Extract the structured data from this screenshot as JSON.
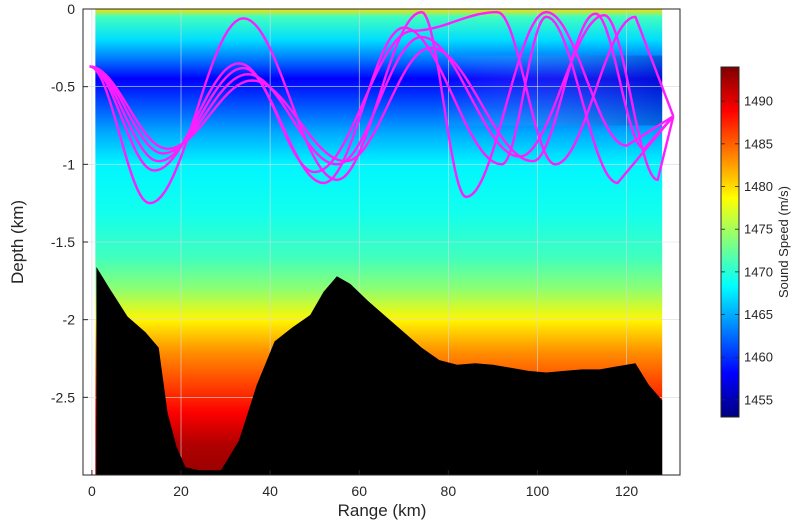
{
  "chart_data": {
    "type": "heatmap",
    "xlabel": "Range (km)",
    "ylabel": "Depth (km)",
    "xlim": [
      -2,
      132
    ],
    "ylim": [
      -3.0,
      0
    ],
    "xticks": [
      0,
      20,
      40,
      60,
      80,
      100,
      120
    ],
    "yticks": [
      0,
      -0.5,
      -1,
      -1.5,
      -2,
      -2.5
    ],
    "ytick_labels": [
      "0",
      "-0.5",
      "-1",
      "-1.5",
      "-2",
      "-2.5"
    ],
    "grid": true,
    "colorbar": {
      "title": "Sound Speed (m/s)",
      "colormap": "jet",
      "range": [
        1453,
        1494
      ],
      "ticks": [
        1455,
        1460,
        1465,
        1470,
        1475,
        1480,
        1485,
        1490
      ]
    },
    "sound_speed_profile": {
      "depth_km": [
        0,
        -0.05,
        -0.2,
        -0.35,
        -0.45,
        -0.6,
        -0.8,
        -1.0,
        -1.3,
        -1.6,
        -1.8,
        -2.0,
        -2.2,
        -2.4,
        -2.6,
        -2.8,
        -3.0
      ],
      "speed_ms": [
        1480,
        1471,
        1467,
        1462,
        1458,
        1461,
        1465,
        1468,
        1469,
        1471,
        1474,
        1479,
        1483,
        1486,
        1489,
        1492,
        1493
      ]
    },
    "bathymetry": {
      "range_km": [
        1,
        4,
        8,
        12,
        15,
        17,
        19,
        21,
        24,
        29,
        33,
        37,
        41,
        45,
        49,
        52,
        55,
        58,
        62,
        66,
        70,
        74,
        78,
        82,
        86,
        90,
        94,
        98,
        102,
        106,
        110,
        114,
        118,
        122,
        125,
        128
      ],
      "depth_km": [
        -1.66,
        -1.8,
        -1.98,
        -2.08,
        -2.18,
        -2.6,
        -2.82,
        -2.95,
        -2.97,
        -2.97,
        -2.78,
        -2.42,
        -2.14,
        -2.05,
        -1.97,
        -1.82,
        -1.72,
        -1.77,
        -1.88,
        -1.98,
        -2.08,
        -2.18,
        -2.26,
        -2.29,
        -2.28,
        -2.29,
        -2.31,
        -2.33,
        -2.34,
        -2.33,
        -2.32,
        -2.32,
        -2.3,
        -2.28,
        -2.42,
        -2.52
      ]
    },
    "ray_color": "#ff1dff",
    "ray_source": {
      "range_km": -0.5,
      "depth_km": -0.37
    },
    "ray_receiver": {
      "range_km": 130.5,
      "depth_km": -0.69
    },
    "rays": [
      {
        "vertices": [
          [
            -0.5,
            -0.37
          ],
          [
            13,
            -1.25
          ],
          [
            34,
            -0.06
          ],
          [
            55,
            -1.1
          ],
          [
            74,
            -0.02
          ],
          [
            84,
            -1.21
          ],
          [
            102,
            -0.02
          ],
          [
            120,
            -0.88
          ],
          [
            130.5,
            -0.69
          ]
        ]
      },
      {
        "vertices": [
          [
            -0.5,
            -0.37
          ],
          [
            14,
            -1.04
          ],
          [
            33,
            -0.35
          ],
          [
            52,
            -1.12
          ],
          [
            70,
            -0.12
          ],
          [
            92,
            -1.0
          ],
          [
            102,
            -0.05
          ],
          [
            118,
            -1.12
          ],
          [
            130.5,
            -0.69
          ]
        ]
      },
      {
        "vertices": [
          [
            -0.5,
            -0.37
          ],
          [
            15,
            -0.98
          ],
          [
            34,
            -0.38
          ],
          [
            50,
            -1.05
          ],
          [
            72,
            -0.14
          ],
          [
            91,
            -0.02
          ],
          [
            104,
            -1.0
          ],
          [
            122,
            -0.05
          ],
          [
            130.5,
            -0.69
          ]
        ]
      },
      {
        "vertices": [
          [
            -0.5,
            -0.37
          ],
          [
            16,
            -0.93
          ],
          [
            35,
            -0.42
          ],
          [
            55,
            -1.0
          ],
          [
            74,
            -0.18
          ],
          [
            96,
            -0.95
          ],
          [
            115,
            -0.04
          ],
          [
            127,
            -1.1
          ],
          [
            130.5,
            -0.69
          ]
        ]
      },
      {
        "vertices": [
          [
            -0.5,
            -0.37
          ],
          [
            17,
            -0.9
          ],
          [
            36,
            -0.46
          ],
          [
            57,
            -0.98
          ],
          [
            76,
            -0.25
          ],
          [
            99,
            -0.98
          ],
          [
            113,
            -0.03
          ],
          [
            124,
            -0.9
          ],
          [
            130.5,
            -0.69
          ]
        ]
      }
    ]
  }
}
